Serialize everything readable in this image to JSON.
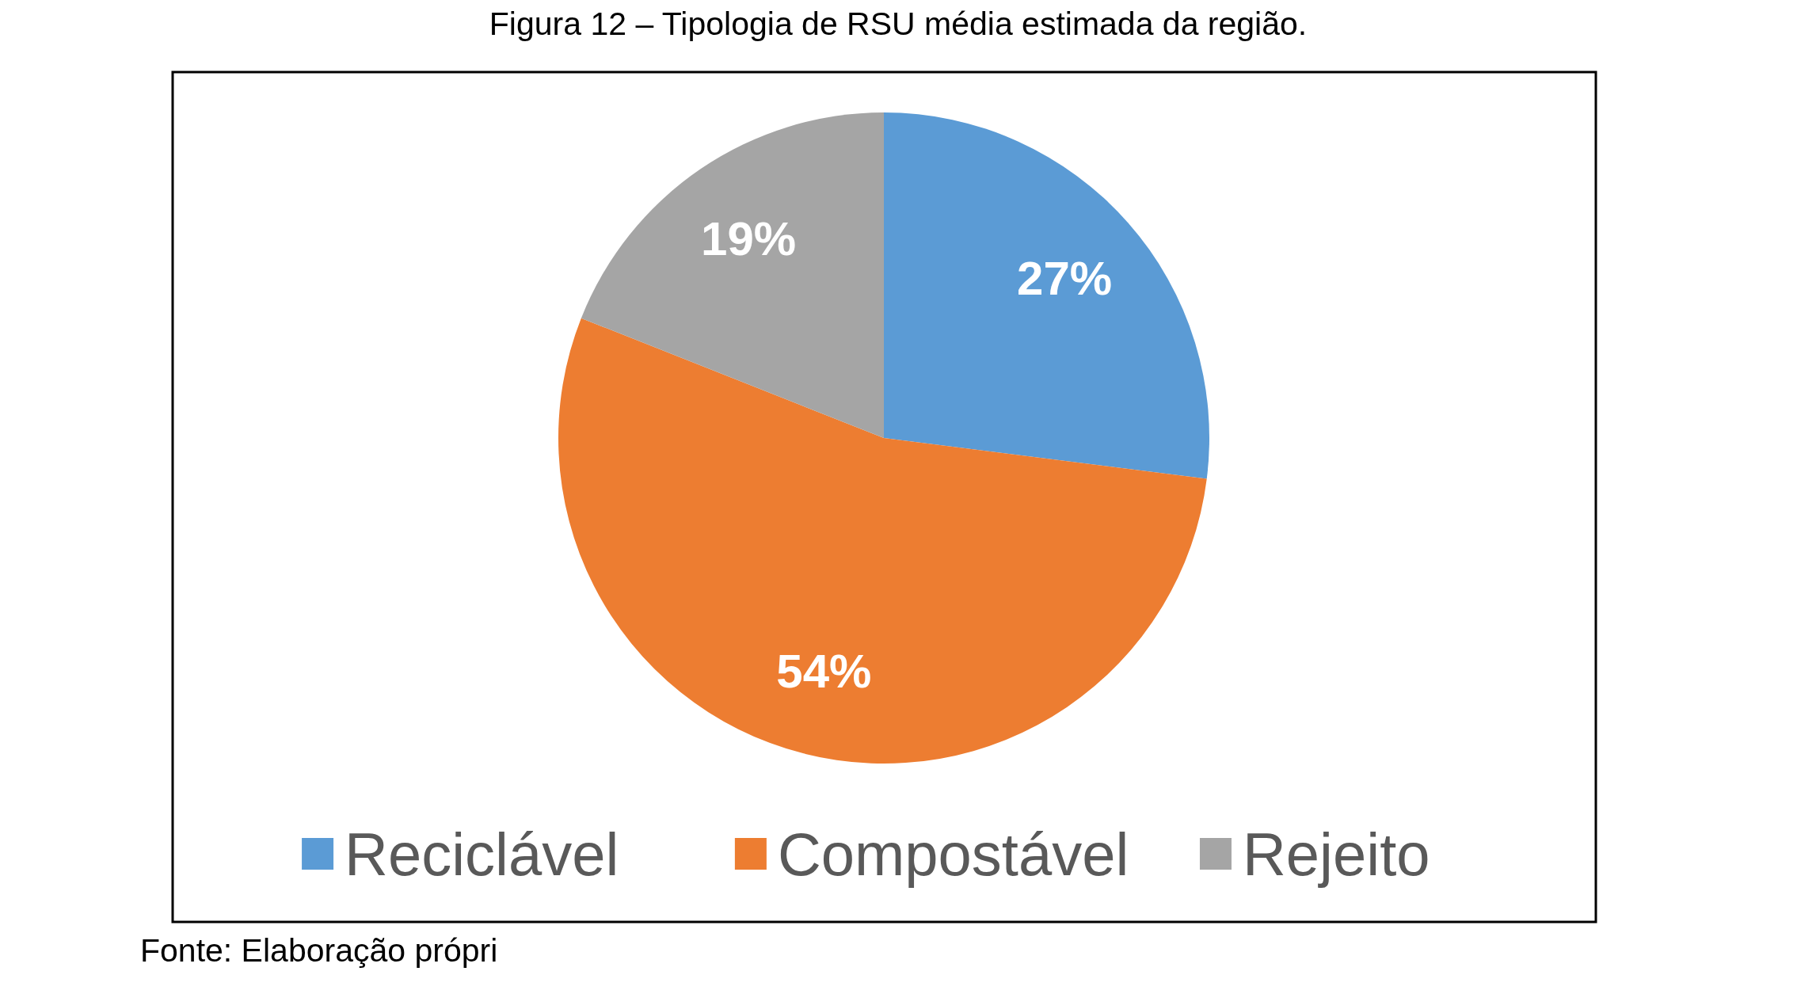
{
  "chart_data": {
    "type": "pie",
    "title": "Figura 12 – Tipologia de RSU média estimada da região.",
    "categories": [
      "Reciclável",
      "Compostável",
      "Rejeito"
    ],
    "values": [
      27,
      54,
      19
    ],
    "colors": [
      "#5b9bd5",
      "#ed7d31",
      "#a5a5a5"
    ],
    "value_labels": [
      "27%",
      "54%",
      "19%"
    ],
    "legend": "bottom",
    "annotations": [
      "Fonte: Elaboração própri"
    ]
  }
}
